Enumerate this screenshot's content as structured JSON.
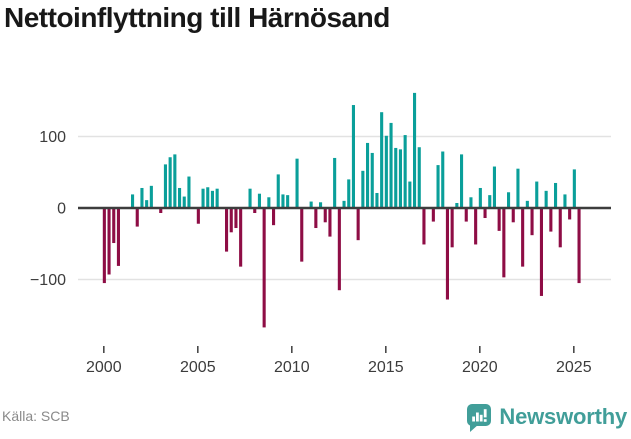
{
  "title": "Nettoinflyttning till Härnösand",
  "source": "Källa: SCB",
  "branding": {
    "name": "Newsworthy",
    "color": "#419e99"
  },
  "colors": {
    "positive": "#0a9f9a",
    "negative": "#8e0d45",
    "zero_line": "#3d3d3d",
    "gridline": "#e2e2e2",
    "axis_text": "#3c3c3c",
    "tick": "#4a4a4a"
  },
  "chart_data": {
    "type": "bar",
    "title": "Nettoinflyttning till Härnösand",
    "frequency": "quarterly",
    "start_year": 2000,
    "start_quarter": 1,
    "end_year": 2025,
    "end_quarter": 2,
    "values": [
      -105,
      -93,
      -49,
      -81,
      0,
      0,
      19,
      -26,
      28,
      11,
      31,
      0,
      -7,
      61,
      71,
      75,
      28,
      16,
      44,
      0,
      -22,
      27,
      29,
      24,
      27,
      0,
      -61,
      -34,
      -28,
      -82,
      0,
      27,
      -7,
      20,
      -167,
      15,
      -24,
      47,
      19,
      18,
      0,
      69,
      -75,
      0,
      9,
      -28,
      8,
      -20,
      -40,
      70,
      -115,
      10,
      40,
      144,
      -45,
      52,
      91,
      77,
      21,
      134,
      101,
      119,
      84,
      82,
      102,
      37,
      161,
      85,
      -51,
      0,
      -19,
      60,
      79,
      -128,
      -55,
      7,
      75,
      -19,
      15,
      -51,
      28,
      -14,
      18,
      58,
      -32,
      -97,
      22,
      -20,
      55,
      -82,
      10,
      -38,
      37,
      -123,
      24,
      -33,
      35,
      -55,
      19,
      -16,
      54,
      -105
    ],
    "x_tick_years": [
      2000,
      2005,
      2010,
      2015,
      2020,
      2025
    ],
    "y_ticks": [
      100,
      0,
      -100
    ],
    "y_tick_labels": [
      "100",
      "0",
      "−100"
    ],
    "ylim": [
      -180,
      170
    ],
    "grid": "horizontal",
    "legend": "none",
    "positive_color": "#0a9f9a",
    "negative_color": "#8e0d45"
  }
}
